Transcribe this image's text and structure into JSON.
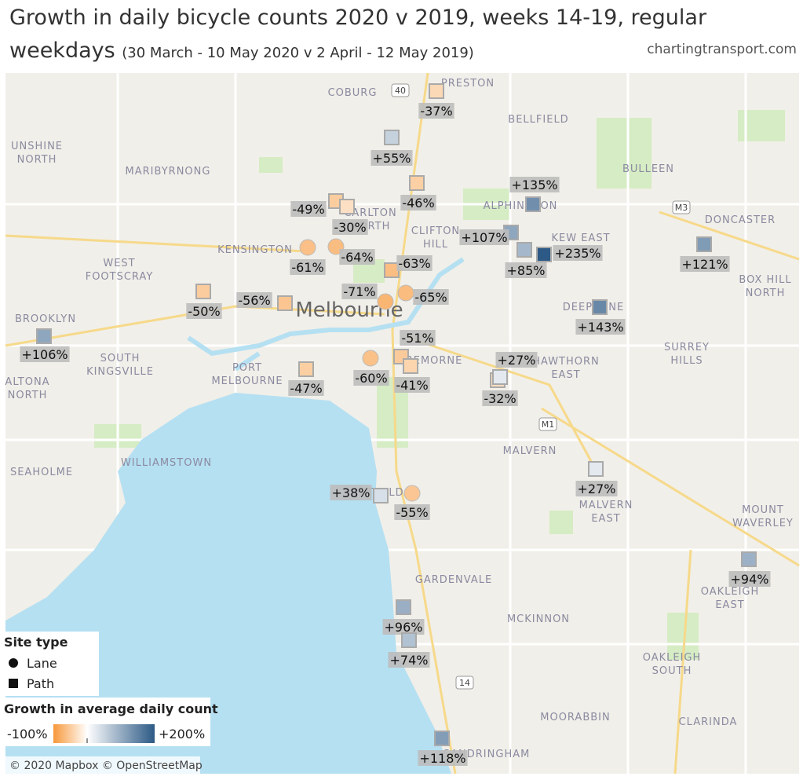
{
  "header": {
    "title": "Growth in daily bicycle counts 2020 v 2019, weeks 14-19, regular weekdays",
    "subtitle": "(30 March - 10 May 2020 v 2 April - 12 May 2019)",
    "source": "chartingtransport.com"
  },
  "legend": {
    "site_type": {
      "title": "Site type",
      "items": [
        "Lane",
        "Path"
      ]
    },
    "color": {
      "title": "Growth in average daily count",
      "min": {
        "value": -100,
        "label": "-100%"
      },
      "max": {
        "value": 200,
        "label": "+200%"
      },
      "low": "#f7983a",
      "mid": "#ffffff",
      "high": "#2c5985"
    }
  },
  "sites": {
    "lane": [
      {
        "value": -61,
        "label": "-61%"
      },
      {
        "value": -64,
        "label": "-64%"
      },
      {
        "value": -71,
        "label": "-71%"
      },
      {
        "value": -65,
        "label": "-65%"
      },
      {
        "value": -60,
        "label": "-60%"
      },
      {
        "value": -55,
        "label": "-55%"
      }
    ],
    "path": [
      {
        "value": -37,
        "label": "-37%"
      },
      {
        "value": 55,
        "label": "+55%"
      },
      {
        "value": -46,
        "label": "-46%"
      },
      {
        "value": -49,
        "label": "-49%"
      },
      {
        "value": -30,
        "label": "-30%"
      },
      {
        "value": 135,
        "label": "+135%"
      },
      {
        "value": 107,
        "label": "+107%"
      },
      {
        "value": 85,
        "label": "+85%"
      },
      {
        "value": 235,
        "label": "+235%"
      },
      {
        "value": 121,
        "label": "+121%"
      },
      {
        "value": -63,
        "label": "-63%"
      },
      {
        "value": -56,
        "label": "-56%"
      },
      {
        "value": -50,
        "label": "-50%"
      },
      {
        "value": 106,
        "label": "+106%"
      },
      {
        "value": 143,
        "label": "+143%"
      },
      {
        "value": -51,
        "label": "-51%"
      },
      {
        "value": -41,
        "label": "-41%"
      },
      {
        "value": -47,
        "label": "-47%"
      },
      {
        "value": -32,
        "label": "-32%"
      },
      {
        "value": 27,
        "label": "+27%"
      },
      {
        "value": 27,
        "label": "+27%"
      },
      {
        "value": 38,
        "label": "+38%"
      },
      {
        "value": 94,
        "label": "+94%"
      },
      {
        "value": 96,
        "label": "+96%"
      },
      {
        "value": 74,
        "label": "+74%"
      },
      {
        "value": 118,
        "label": "+118%"
      }
    ]
  },
  "map": {
    "city": "Melbourne",
    "attribution": "© 2020 Mapbox © OpenStreetMap",
    "shields": [
      "40",
      "M3",
      "M1",
      "14"
    ],
    "labels": [
      [
        "COBURG"
      ],
      [
        "PRESTON"
      ],
      [
        "BELLFIELD"
      ],
      [
        "UNSHINE",
        "NORTH"
      ],
      [
        "MARIBYRNONG"
      ],
      [
        "BULLEEN"
      ],
      [
        "ALPHINGTON"
      ],
      [
        "DONCASTER"
      ],
      [
        "CARLTON",
        "NORTH"
      ],
      [
        "KENSINGTON"
      ],
      [
        "CLIFTON",
        "HILL"
      ],
      [
        "KEW EAST"
      ],
      [
        "WEST",
        "FOOTSCRAY"
      ],
      [
        "BOX HILL",
        "NORTH"
      ],
      [
        "DEEPDENE"
      ],
      [
        "BROOKLYN"
      ],
      [
        "SOUTH",
        "KINGSVILLE"
      ],
      [
        "SURREY",
        "HILLS"
      ],
      [
        "HAWTHORN",
        "EAST"
      ],
      [
        "CREMORNE"
      ],
      [
        "ALTONA",
        "NORTH"
      ],
      [
        "PORT",
        "MELBOURNE"
      ],
      [
        "MALVERN"
      ],
      [
        "SEAHOLME"
      ],
      [
        "WILLIAMSTOWN"
      ],
      [
        "ST KILDA"
      ],
      [
        "MALVERN",
        "EAST"
      ],
      [
        "MOUNT",
        "WAVERLEY"
      ],
      [
        "GARDENVALE"
      ],
      [
        "OAKLEIGH",
        "EAST"
      ],
      [
        "MCKINNON"
      ],
      [
        "OAKLEIGH",
        "SOUTH"
      ],
      [
        "MOORABBIN"
      ],
      [
        "CLARINDA"
      ],
      [
        "SANDRINGHAM"
      ]
    ]
  }
}
